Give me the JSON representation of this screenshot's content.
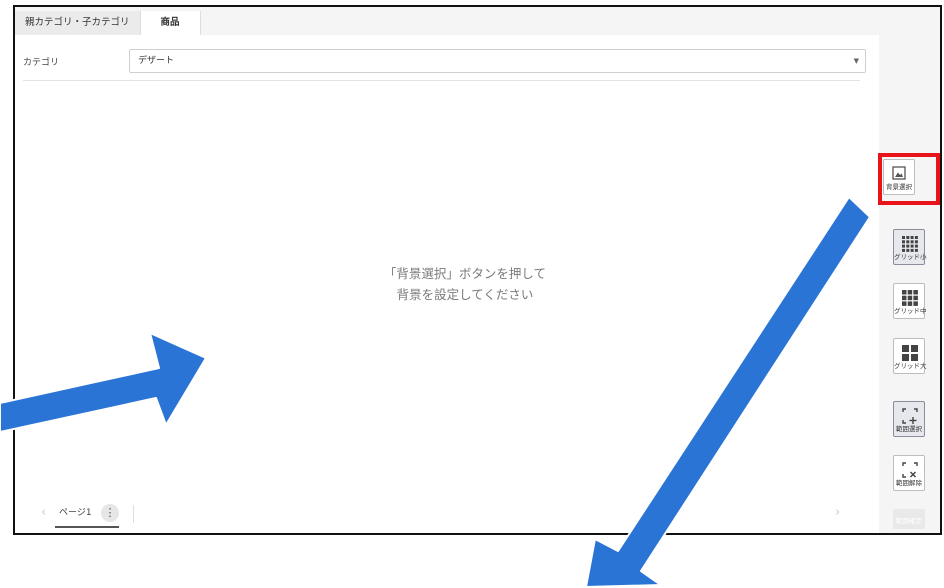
{
  "tabs": [
    {
      "label": "親カテゴリ・子カテゴリ"
    },
    {
      "label": "商品"
    }
  ],
  "category": {
    "label": "カテゴリ",
    "value": "デザート"
  },
  "canvas": {
    "message_line1": "「背景選択」ボタンを押して",
    "message_line2": "背景を設定してください"
  },
  "pager": {
    "page_label": "ページ1",
    "menu_icon": "⋮",
    "prev_icon": "‹",
    "next_icon": "›"
  },
  "tools": {
    "background": {
      "label": "背景選択",
      "icon": "image-icon"
    },
    "grid_small": {
      "label": "グリッド小",
      "icon": "grid-small-icon"
    },
    "grid_medium": {
      "label": "グリッド中",
      "icon": "grid-medium-icon"
    },
    "grid_large": {
      "label": "グリッド大",
      "icon": "grid-large-icon"
    },
    "range_select": {
      "label": "範囲選択",
      "icon": "range-select-icon"
    },
    "range_clear": {
      "label": "範囲解除",
      "icon": "range-clear-icon"
    },
    "range_confirm": {
      "label": "範囲確定"
    }
  },
  "annotations": {
    "highlight_color": "#e8141a",
    "arrow_color": "#2a74d6"
  }
}
